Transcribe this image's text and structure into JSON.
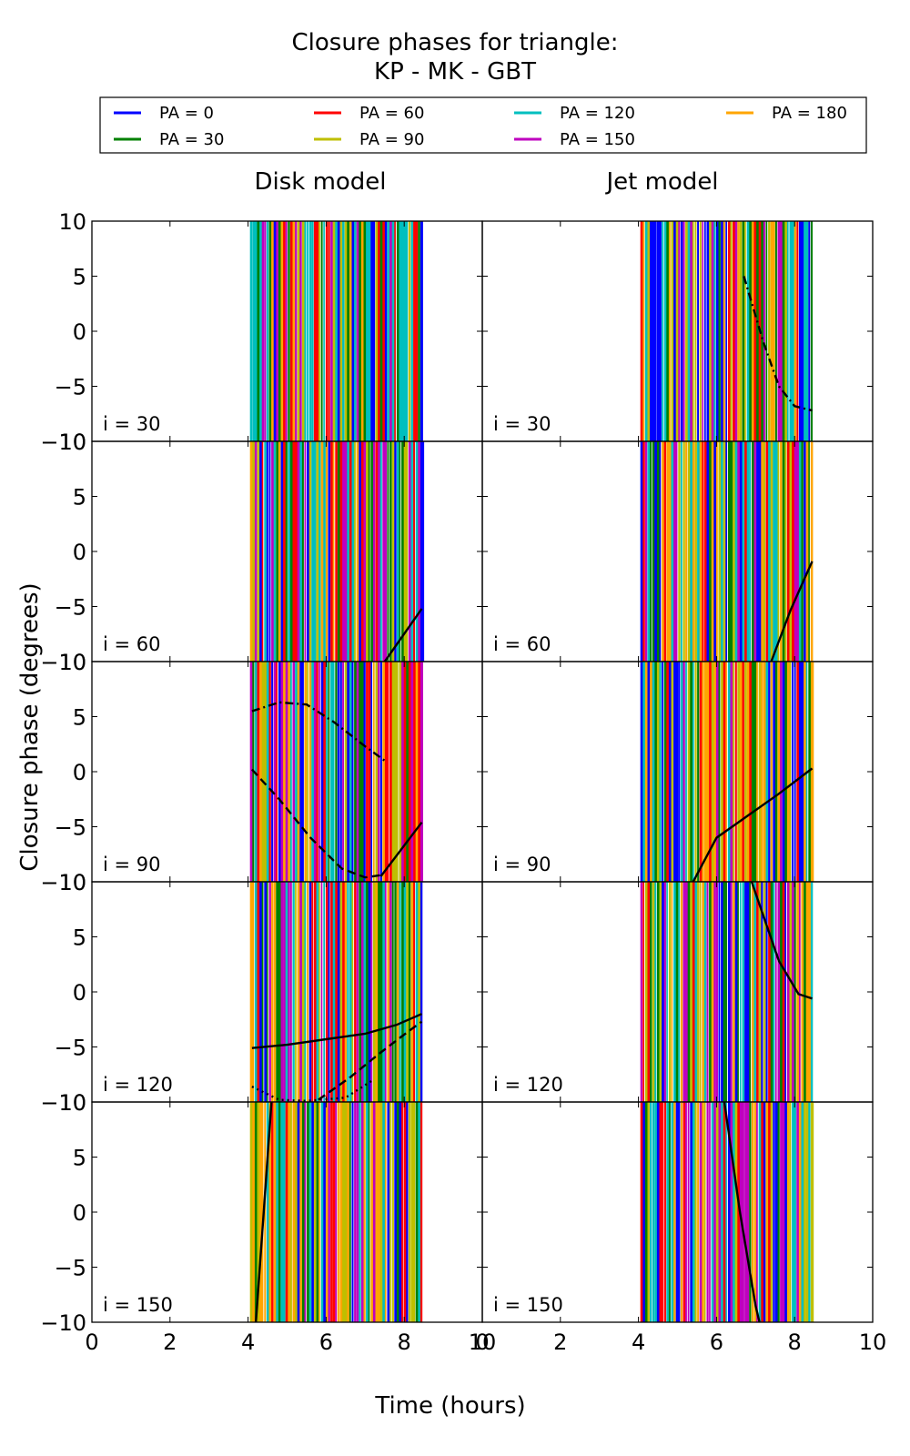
{
  "chart_data": {
    "type": "line",
    "title": "Closure phases for triangle:",
    "subtitle": "KP - MK - GBT",
    "xlabel": "Time (hours)",
    "ylabel": "Closure phase (degrees)",
    "xlim": [
      0,
      10
    ],
    "ylim": [
      -10,
      10
    ],
    "xticks": [
      "0",
      "2",
      "4",
      "6",
      "8",
      "10"
    ],
    "yticks": [
      "10",
      "5",
      "0",
      "−5",
      "−10"
    ],
    "grid": false,
    "legend_position": "top",
    "columns": [
      "Disk model",
      "Jet model"
    ],
    "rows": [
      "i = 30",
      "i = 60",
      "i = 90",
      "i = 120",
      "i = 150"
    ],
    "series": [
      {
        "name": "PA = 0",
        "color": "#0000ff"
      },
      {
        "name": "PA = 30",
        "color": "#008000"
      },
      {
        "name": "PA = 60",
        "color": "#ff0000"
      },
      {
        "name": "PA = 90",
        "color": "#bfbf00"
      },
      {
        "name": "PA = 120",
        "color": "#00bfbf"
      },
      {
        "name": "PA = 150",
        "color": "#bf00bf"
      },
      {
        "name": "PA = 180",
        "color": "#ffa500"
      }
    ],
    "time_range_hours": [
      4.05,
      8.45
    ],
    "model_curves": {
      "disk": [
        {
          "row": "i = 60",
          "style": "solid",
          "x": [
            7.5,
            8.45
          ],
          "y": [
            -10,
            -5.2
          ]
        },
        {
          "row": "i = 90",
          "style": "solid",
          "x": [
            7.4,
            8.45
          ],
          "y": [
            -9.5,
            -4.6
          ]
        },
        {
          "row": "i = 90",
          "style": "dashed",
          "x": [
            4.1,
            4.8,
            5.6,
            6.4,
            7.0,
            7.4
          ],
          "y": [
            0.2,
            -2.5,
            -6.0,
            -8.8,
            -9.6,
            -9.4
          ]
        },
        {
          "row": "i = 90",
          "style": "dashdot",
          "x": [
            4.1,
            4.8,
            5.5,
            6.2,
            7.0,
            7.5
          ],
          "y": [
            5.5,
            6.3,
            6.1,
            4.5,
            2.3,
            1.0
          ]
        },
        {
          "row": "i = 120",
          "style": "solid",
          "x": [
            4.1,
            5.0,
            6.0,
            7.0,
            7.8,
            8.45
          ],
          "y": [
            -5.1,
            -4.8,
            -4.3,
            -3.8,
            -3.0,
            -2.0
          ]
        },
        {
          "row": "i = 120",
          "style": "dashed",
          "x": [
            5.8,
            6.6,
            7.4,
            8.1,
            8.45
          ],
          "y": [
            -9.8,
            -7.8,
            -5.5,
            -3.6,
            -2.7
          ]
        },
        {
          "row": "i = 120",
          "style": "dotted",
          "x": [
            4.1,
            4.8,
            5.5,
            6.5,
            7.2
          ],
          "y": [
            -8.6,
            -9.8,
            -9.9,
            -9.6,
            -8.0
          ]
        },
        {
          "row": "i = 150",
          "style": "solid",
          "x": [
            4.2,
            4.4,
            4.6
          ],
          "y": [
            -10,
            0,
            10
          ]
        }
      ],
      "jet": [
        {
          "row": "i = 30",
          "style": "dashdot",
          "x": [
            6.7,
            7.2,
            7.6,
            8.0,
            8.45
          ],
          "y": [
            5.0,
            -1.0,
            -5.0,
            -6.8,
            -7.2
          ]
        },
        {
          "row": "i = 60",
          "style": "solid",
          "x": [
            7.4,
            7.9,
            8.45
          ],
          "y": [
            -10,
            -5.3,
            -0.9
          ]
        },
        {
          "row": "i = 90",
          "style": "solid",
          "x": [
            5.4,
            6.0,
            6.8,
            7.6,
            8.45
          ],
          "y": [
            -10,
            -6.0,
            -4.0,
            -2.0,
            0.3
          ]
        },
        {
          "row": "i = 120",
          "style": "solid",
          "x": [
            6.9,
            7.6,
            8.1,
            8.45
          ],
          "y": [
            10,
            2.8,
            -0.2,
            -0.6
          ]
        },
        {
          "row": "i = 150",
          "style": "solid",
          "x": [
            6.2,
            6.6,
            7.0,
            7.1
          ],
          "y": [
            10,
            0,
            -8.5,
            -10
          ]
        }
      ]
    }
  }
}
